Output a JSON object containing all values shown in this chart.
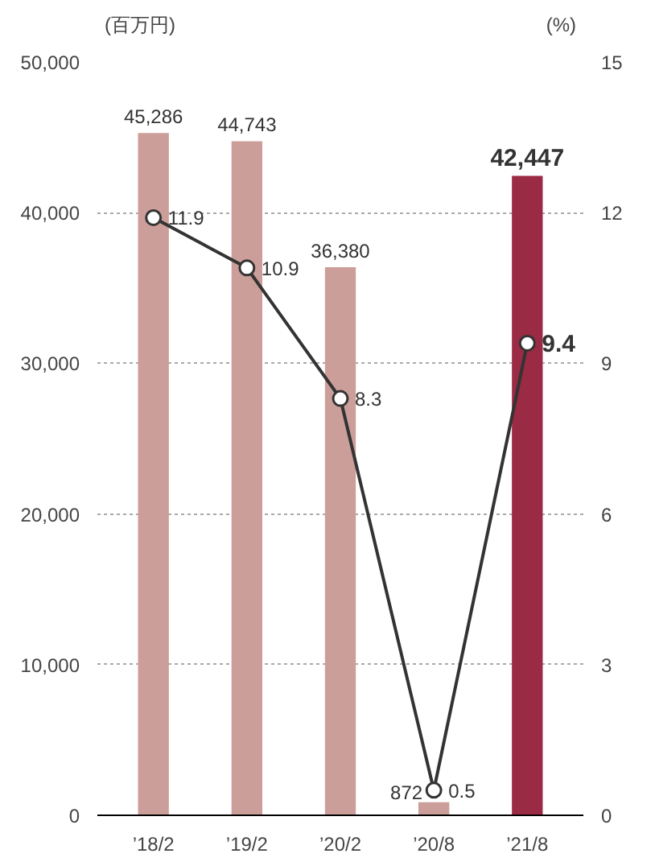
{
  "chart_data": {
    "type": "bar",
    "categories": [
      "’18/2",
      "’19/2",
      "’20/2",
      "’20/8",
      "’21/8"
    ],
    "ylabel": "(百万円)",
    "y2label": "(%)",
    "ylim": [
      0,
      50000
    ],
    "yticks": [
      0,
      {
        "value": 10000,
        "label": "10,000"
      },
      {
        "value": 20000,
        "label": "20,000"
      },
      {
        "value": 30000,
        "label": "30,000"
      },
      {
        "value": 40000,
        "label": "40,000"
      },
      {
        "value": 50000,
        "label": "50,000"
      }
    ],
    "y2lim": [
      0,
      15
    ],
    "y2ticks": [
      0,
      3,
      6,
      9,
      12,
      15
    ],
    "grid": "y",
    "series": [
      {
        "colors": [
          "#cc9e99",
          "#cc9e99",
          "#cc9e99",
          "#cc9e99",
          "#9b2a44"
        ],
        "values": [
          45286,
          44743,
          36380,
          872,
          42447
        ],
        "value_labels": [
          "45,286",
          "44,743",
          "36,380",
          "872",
          "42,447"
        ]
      },
      {
        "type": "line",
        "axis": "y2",
        "color": "#333333",
        "marker": "circle",
        "values": [
          11.9,
          10.9,
          8.3,
          0.5,
          9.4
        ],
        "value_labels": [
          "11.9",
          "10.9",
          "8.3",
          "0.5",
          "9.4"
        ]
      }
    ]
  }
}
